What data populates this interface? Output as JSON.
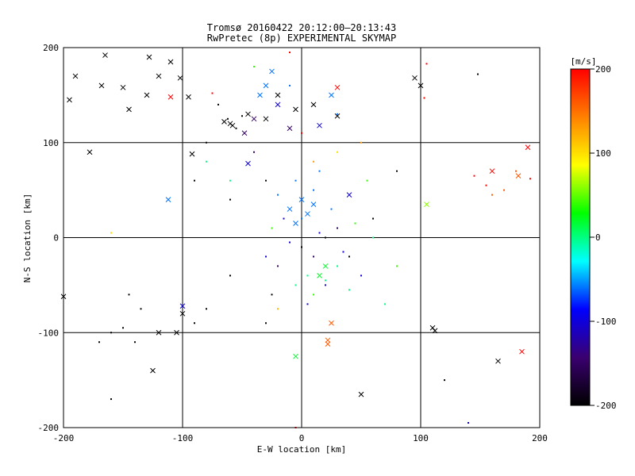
{
  "chart_data": {
    "type": "scatter",
    "title": "Tromsø 20160422 20:12:00–20:13:43",
    "subtitle": "RwPretec (8p) EXPERIMENTAL SKYMAP",
    "xlabel": "E-W location [km]",
    "ylabel": "N-S location [km]",
    "xlim": [
      -200,
      200
    ],
    "ylim": [
      -200,
      200
    ],
    "xticks": [
      -200,
      -100,
      0,
      100,
      200
    ],
    "yticks": [
      -200,
      -100,
      0,
      100,
      200
    ],
    "grid": true,
    "markers": [
      "dot",
      "x"
    ],
    "colorbar": {
      "label": "[m/s]",
      "min": -200,
      "max": 200,
      "ticks": [
        200,
        100,
        0,
        -100,
        -200
      ],
      "colormap": [
        "#000000",
        "#3a0070",
        "#0000ff",
        "#00ffff",
        "#00ff00",
        "#ffff00",
        "#ff8000",
        "#ff0000"
      ]
    },
    "points": [
      {
        "x": -190,
        "y": 170,
        "v": -200,
        "m": "x"
      },
      {
        "x": -195,
        "y": 145,
        "v": -200,
        "m": "x"
      },
      {
        "x": -165,
        "y": 192,
        "v": -200,
        "m": "x"
      },
      {
        "x": -168,
        "y": 160,
        "v": -200,
        "m": "x"
      },
      {
        "x": -150,
        "y": 158,
        "v": -200,
        "m": "x"
      },
      {
        "x": -145,
        "y": 135,
        "v": -200,
        "m": "x"
      },
      {
        "x": -130,
        "y": 150,
        "v": -200,
        "m": "x"
      },
      {
        "x": -120,
        "y": 170,
        "v": -200,
        "m": "x"
      },
      {
        "x": -110,
        "y": 185,
        "v": -200,
        "m": "x"
      },
      {
        "x": -102,
        "y": 168,
        "v": -200,
        "m": "x"
      },
      {
        "x": -95,
        "y": 148,
        "v": -200,
        "m": "x"
      },
      {
        "x": -128,
        "y": 190,
        "v": -200,
        "m": "x"
      },
      {
        "x": -178,
        "y": 90,
        "v": -200,
        "m": "x"
      },
      {
        "x": -60,
        "y": 120,
        "v": -200,
        "m": "x"
      },
      {
        "x": -58,
        "y": 118,
        "v": -200,
        "m": "x"
      },
      {
        "x": -65,
        "y": 122,
        "v": -200,
        "m": "x"
      },
      {
        "x": -45,
        "y": 130,
        "v": -200,
        "m": "x"
      },
      {
        "x": -30,
        "y": 125,
        "v": -200,
        "m": "x"
      },
      {
        "x": -20,
        "y": 150,
        "v": -200,
        "m": "x"
      },
      {
        "x": -5,
        "y": 135,
        "v": -200,
        "m": "x"
      },
      {
        "x": 10,
        "y": 140,
        "v": -200,
        "m": "x"
      },
      {
        "x": 30,
        "y": 128,
        "v": -200,
        "m": "x"
      },
      {
        "x": 95,
        "y": 168,
        "v": -200,
        "m": "x"
      },
      {
        "x": 100,
        "y": 160,
        "v": -200,
        "m": "x"
      },
      {
        "x": -92,
        "y": 88,
        "v": -200,
        "m": "x"
      },
      {
        "x": -120,
        "y": -100,
        "v": -200,
        "m": "x"
      },
      {
        "x": -105,
        "y": -100,
        "v": -200,
        "m": "x"
      },
      {
        "x": -100,
        "y": -80,
        "v": -200,
        "m": "x"
      },
      {
        "x": -125,
        "y": -140,
        "v": -200,
        "m": "x"
      },
      {
        "x": -200,
        "y": -62,
        "v": -200,
        "m": "x"
      },
      {
        "x": 110,
        "y": -95,
        "v": -200,
        "m": "x"
      },
      {
        "x": 112,
        "y": -98,
        "v": -200,
        "m": "x"
      },
      {
        "x": 165,
        "y": -130,
        "v": -200,
        "m": "x"
      },
      {
        "x": 50,
        "y": -165,
        "v": -200,
        "m": "x"
      },
      {
        "x": -40,
        "y": 125,
        "v": -150,
        "m": "x"
      },
      {
        "x": -10,
        "y": 115,
        "v": -150,
        "m": "x"
      },
      {
        "x": -48,
        "y": 110,
        "v": -150,
        "m": "x"
      },
      {
        "x": -20,
        "y": 140,
        "v": -100,
        "m": "x"
      },
      {
        "x": 15,
        "y": 118,
        "v": -100,
        "m": "x"
      },
      {
        "x": -45,
        "y": 78,
        "v": -100,
        "m": "x"
      },
      {
        "x": 40,
        "y": 45,
        "v": -100,
        "m": "x"
      },
      {
        "x": -100,
        "y": -72,
        "v": -100,
        "m": "x"
      },
      {
        "x": -30,
        "y": 160,
        "v": -60,
        "m": "x"
      },
      {
        "x": -25,
        "y": 175,
        "v": -60,
        "m": "x"
      },
      {
        "x": -35,
        "y": 150,
        "v": -60,
        "m": "x"
      },
      {
        "x": 25,
        "y": 150,
        "v": -60,
        "m": "x"
      },
      {
        "x": -10,
        "y": 30,
        "v": -60,
        "m": "x"
      },
      {
        "x": 0,
        "y": 40,
        "v": -60,
        "m": "x"
      },
      {
        "x": 5,
        "y": 25,
        "v": -60,
        "m": "x"
      },
      {
        "x": -5,
        "y": 15,
        "v": -60,
        "m": "x"
      },
      {
        "x": 10,
        "y": 35,
        "v": -60,
        "m": "x"
      },
      {
        "x": -112,
        "y": 40,
        "v": -60,
        "m": "x"
      },
      {
        "x": 20,
        "y": -30,
        "v": 20,
        "m": "x"
      },
      {
        "x": 15,
        "y": -40,
        "v": 20,
        "m": "x"
      },
      {
        "x": -5,
        "y": -125,
        "v": 20,
        "m": "x"
      },
      {
        "x": 105,
        "y": 35,
        "v": 60,
        "m": "x"
      },
      {
        "x": 22,
        "y": -108,
        "v": 160,
        "m": "x"
      },
      {
        "x": 22,
        "y": -112,
        "v": 160,
        "m": "x"
      },
      {
        "x": 25,
        "y": -90,
        "v": 160,
        "m": "x"
      },
      {
        "x": 182,
        "y": 65,
        "v": 160,
        "m": "x"
      },
      {
        "x": 160,
        "y": 70,
        "v": 200,
        "m": "x"
      },
      {
        "x": 190,
        "y": 95,
        "v": 200,
        "m": "x"
      },
      {
        "x": 185,
        "y": -120,
        "v": 200,
        "m": "x"
      },
      {
        "x": -110,
        "y": 148,
        "v": 200,
        "m": "x"
      },
      {
        "x": 30,
        "y": 158,
        "v": 200,
        "m": "x"
      },
      {
        "x": -70,
        "y": 140,
        "v": -200,
        "m": "dot"
      },
      {
        "x": -55,
        "y": 115,
        "v": -200,
        "m": "dot"
      },
      {
        "x": -62,
        "y": 125,
        "v": -200,
        "m": "dot"
      },
      {
        "x": -50,
        "y": 128,
        "v": -200,
        "m": "dot"
      },
      {
        "x": -80,
        "y": 100,
        "v": -200,
        "m": "dot"
      },
      {
        "x": -90,
        "y": 60,
        "v": -200,
        "m": "dot"
      },
      {
        "x": -60,
        "y": 40,
        "v": -200,
        "m": "dot"
      },
      {
        "x": -30,
        "y": 60,
        "v": -200,
        "m": "dot"
      },
      {
        "x": -140,
        "y": -110,
        "v": -200,
        "m": "dot"
      },
      {
        "x": -150,
        "y": -95,
        "v": -200,
        "m": "dot"
      },
      {
        "x": -160,
        "y": -100,
        "v": -200,
        "m": "dot"
      },
      {
        "x": -170,
        "y": -110,
        "v": -200,
        "m": "dot"
      },
      {
        "x": -135,
        "y": -75,
        "v": -200,
        "m": "dot"
      },
      {
        "x": -145,
        "y": -60,
        "v": -200,
        "m": "dot"
      },
      {
        "x": -90,
        "y": -90,
        "v": -200,
        "m": "dot"
      },
      {
        "x": -80,
        "y": -75,
        "v": -200,
        "m": "dot"
      },
      {
        "x": -60,
        "y": -40,
        "v": -200,
        "m": "dot"
      },
      {
        "x": -30,
        "y": -90,
        "v": -200,
        "m": "dot"
      },
      {
        "x": -25,
        "y": -60,
        "v": -200,
        "m": "dot"
      },
      {
        "x": 0,
        "y": -10,
        "v": -200,
        "m": "dot"
      },
      {
        "x": 20,
        "y": 0,
        "v": -200,
        "m": "dot"
      },
      {
        "x": 40,
        "y": -20,
        "v": -200,
        "m": "dot"
      },
      {
        "x": 60,
        "y": 20,
        "v": -200,
        "m": "dot"
      },
      {
        "x": 80,
        "y": 70,
        "v": -200,
        "m": "dot"
      },
      {
        "x": 120,
        "y": -150,
        "v": -200,
        "m": "dot"
      },
      {
        "x": 148,
        "y": 172,
        "v": -200,
        "m": "dot"
      },
      {
        "x": -160,
        "y": -170,
        "v": -200,
        "m": "dot"
      },
      {
        "x": 10,
        "y": -20,
        "v": -150,
        "m": "dot"
      },
      {
        "x": 30,
        "y": 10,
        "v": -150,
        "m": "dot"
      },
      {
        "x": -20,
        "y": -30,
        "v": -150,
        "m": "dot"
      },
      {
        "x": -40,
        "y": 90,
        "v": -150,
        "m": "dot"
      },
      {
        "x": 20,
        "y": -50,
        "v": -100,
        "m": "dot"
      },
      {
        "x": -10,
        "y": -5,
        "v": -100,
        "m": "dot"
      },
      {
        "x": 15,
        "y": 5,
        "v": -100,
        "m": "dot"
      },
      {
        "x": 35,
        "y": -15,
        "v": -100,
        "m": "dot"
      },
      {
        "x": -30,
        "y": -20,
        "v": -100,
        "m": "dot"
      },
      {
        "x": 50,
        "y": -40,
        "v": -100,
        "m": "dot"
      },
      {
        "x": -15,
        "y": 20,
        "v": -100,
        "m": "dot"
      },
      {
        "x": 5,
        "y": -70,
        "v": -100,
        "m": "dot"
      },
      {
        "x": 140,
        "y": -195,
        "v": -100,
        "m": "dot"
      },
      {
        "x": 0,
        "y": 20,
        "v": -60,
        "m": "dot"
      },
      {
        "x": 10,
        "y": 50,
        "v": -60,
        "m": "dot"
      },
      {
        "x": -5,
        "y": 60,
        "v": -60,
        "m": "dot"
      },
      {
        "x": 25,
        "y": 30,
        "v": -60,
        "m": "dot"
      },
      {
        "x": -20,
        "y": 45,
        "v": -60,
        "m": "dot"
      },
      {
        "x": 15,
        "y": 70,
        "v": -60,
        "m": "dot"
      },
      {
        "x": 30,
        "y": 130,
        "v": -60,
        "m": "dot"
      },
      {
        "x": -10,
        "y": 160,
        "v": -60,
        "m": "dot"
      },
      {
        "x": 5,
        "y": -40,
        "v": 0,
        "m": "dot"
      },
      {
        "x": 20,
        "y": -45,
        "v": 0,
        "m": "dot"
      },
      {
        "x": 30,
        "y": -30,
        "v": 0,
        "m": "dot"
      },
      {
        "x": -5,
        "y": -50,
        "v": 0,
        "m": "dot"
      },
      {
        "x": 40,
        "y": -55,
        "v": 0,
        "m": "dot"
      },
      {
        "x": -60,
        "y": 60,
        "v": 0,
        "m": "dot"
      },
      {
        "x": 60,
        "y": 0,
        "v": 0,
        "m": "dot"
      },
      {
        "x": -80,
        "y": 80,
        "v": 0,
        "m": "dot"
      },
      {
        "x": 70,
        "y": -70,
        "v": 0,
        "m": "dot"
      },
      {
        "x": 10,
        "y": -60,
        "v": 40,
        "m": "dot"
      },
      {
        "x": 45,
        "y": 15,
        "v": 40,
        "m": "dot"
      },
      {
        "x": -25,
        "y": 10,
        "v": 40,
        "m": "dot"
      },
      {
        "x": 55,
        "y": 60,
        "v": 40,
        "m": "dot"
      },
      {
        "x": -40,
        "y": 180,
        "v": 40,
        "m": "dot"
      },
      {
        "x": 80,
        "y": -30,
        "v": 40,
        "m": "dot"
      },
      {
        "x": -160,
        "y": 5,
        "v": 100,
        "m": "dot"
      },
      {
        "x": 30,
        "y": 90,
        "v": 100,
        "m": "dot"
      },
      {
        "x": -20,
        "y": -75,
        "v": 120,
        "m": "dot"
      },
      {
        "x": 50,
        "y": 100,
        "v": 130,
        "m": "dot"
      },
      {
        "x": 10,
        "y": 80,
        "v": 130,
        "m": "dot"
      },
      {
        "x": 160,
        "y": 45,
        "v": 160,
        "m": "dot"
      },
      {
        "x": 170,
        "y": 50,
        "v": 160,
        "m": "dot"
      },
      {
        "x": 180,
        "y": 70,
        "v": 160,
        "m": "dot"
      },
      {
        "x": 145,
        "y": 65,
        "v": 200,
        "m": "dot"
      },
      {
        "x": 155,
        "y": 55,
        "v": 200,
        "m": "dot"
      },
      {
        "x": 192,
        "y": 62,
        "v": 200,
        "m": "dot"
      },
      {
        "x": 103,
        "y": 147,
        "v": 200,
        "m": "dot"
      },
      {
        "x": -10,
        "y": 195,
        "v": 200,
        "m": "dot"
      },
      {
        "x": 105,
        "y": 183,
        "v": 200,
        "m": "dot"
      },
      {
        "x": -75,
        "y": 152,
        "v": 200,
        "m": "dot"
      },
      {
        "x": 0,
        "y": 110,
        "v": 200,
        "m": "dot"
      },
      {
        "x": -5,
        "y": -200,
        "v": 200,
        "m": "dot"
      }
    ]
  }
}
